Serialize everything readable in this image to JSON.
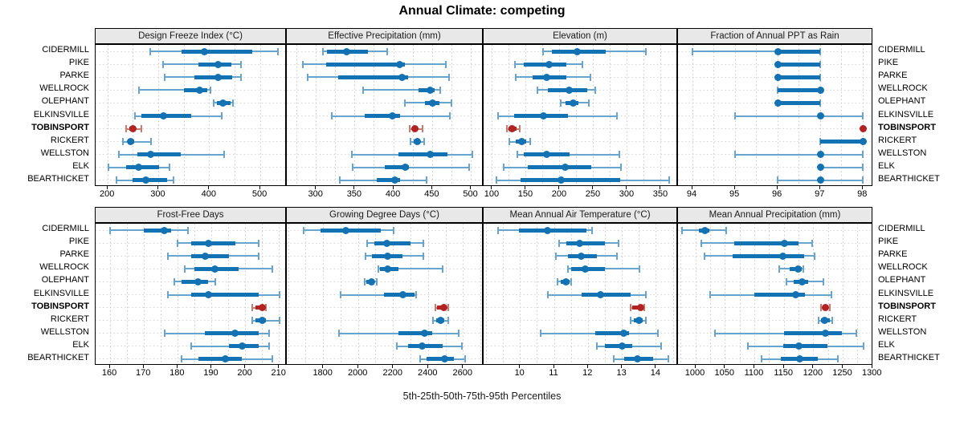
{
  "title": "Annual Climate: competing",
  "footer": "5th-25th-50th-75th-95th Percentiles",
  "sites": [
    "CIDERMILL",
    "PIKE",
    "PARKE",
    "WELLROCK",
    "OLEPHANT",
    "ELKINSVILLE",
    "TOBINSPORT",
    "RICKERT",
    "WELLSTON",
    "ELK",
    "BEARTHICKET"
  ],
  "highlight_site": "TOBINSPORT",
  "colors": {
    "blue": "#1272b4",
    "blue_light": "#67a4ce",
    "red": "#b22222",
    "red_light": "#c97c6d",
    "header_bg": "#e8e8e8",
    "grid": "#c9c9c9",
    "row_grid": "#d6d6d6",
    "border": "#000000"
  },
  "chart_data": {
    "type": "dot-whisker-trellis",
    "percentiles": [
      5,
      25,
      50,
      75,
      95
    ],
    "panels": [
      {
        "title": "Design Freeze Index (°C)",
        "xlim": [
          176,
          552
        ],
        "ticks": [
          200,
          300,
          400,
          500
        ],
        "minor_step": 50,
        "values": {
          "CIDERMILL": [
            283,
            345,
            390,
            484,
            535
          ],
          "PIKE": [
            308,
            378,
            417,
            443,
            462
          ],
          "PARKE": [
            312,
            370,
            417,
            444,
            462
          ],
          "WELLROCK": [
            262,
            349,
            380,
            396,
            402
          ],
          "OLEPHANT": [
            409,
            414,
            426,
            441,
            446
          ],
          "ELKINSVILLE": [
            254,
            266,
            310,
            364,
            424
          ],
          "TOBINSPORT": [
            236,
            243,
            249,
            255,
            266
          ],
          "RICKERT": [
            229,
            239,
            245,
            252,
            285
          ],
          "WELLSTON": [
            222,
            258,
            284,
            344,
            428
          ],
          "ELK": [
            202,
            236,
            261,
            301,
            322
          ],
          "BEARTHICKET": [
            217,
            249,
            274,
            317,
            330
          ]
        }
      },
      {
        "title": "Effective Precipitation (mm)",
        "xlim": [
          262,
          516
        ],
        "ticks": [
          300,
          350,
          400,
          450,
          500
        ],
        "minor_step": 25,
        "values": {
          "CIDERMILL": [
            309,
            314,
            339,
            367,
            392
          ],
          "PIKE": [
            283,
            313,
            408,
            414,
            467
          ],
          "PARKE": [
            289,
            328,
            411,
            419,
            471
          ],
          "WELLROCK": [
            360,
            432,
            447,
            453,
            460
          ],
          "OLEPHANT": [
            414,
            440,
            450,
            459,
            475
          ],
          "ELKINSVILLE": [
            320,
            363,
            398,
            408,
            472
          ],
          "TOBINSPORT": [
            421,
            424,
            427,
            431,
            437
          ],
          "RICKERT": [
            422,
            426,
            430,
            433,
            439
          ],
          "WELLSTON": [
            346,
            406,
            447,
            469,
            502
          ],
          "ELK": [
            347,
            388,
            415,
            420,
            497
          ],
          "BEARTHICKET": [
            330,
            378,
            401,
            408,
            442
          ]
        }
      },
      {
        "title": "Elevation (m)",
        "xlim": [
          87,
          375
        ],
        "ticks": [
          100,
          150,
          200,
          250,
          300,
          350
        ],
        "minor_step": 25,
        "values": {
          "CIDERMILL": [
            175,
            188,
            226,
            268,
            327
          ],
          "PIKE": [
            134,
            147,
            184,
            209,
            233
          ],
          "PARKE": [
            135,
            160,
            181,
            210,
            245
          ],
          "WELLROCK": [
            167,
            182,
            214,
            241,
            253
          ],
          "OLEPHANT": [
            201,
            208,
            220,
            227,
            243
          ],
          "ELKINSVILLE": [
            109,
            132,
            176,
            212,
            285
          ],
          "TOBINSPORT": [
            121,
            124,
            129,
            136,
            141
          ],
          "RICKERT": [
            125,
            135,
            144,
            150,
            156
          ],
          "WELLSTON": [
            137,
            146,
            180,
            214,
            288
          ],
          "ELK": [
            117,
            152,
            208,
            247,
            290
          ],
          "BEARTHICKET": [
            106,
            142,
            202,
            289,
            362
          ]
        }
      },
      {
        "title": "Fraction of Annual PPT as Rain",
        "xlim": [
          93.66,
          98.24
        ],
        "ticks": [
          94,
          95,
          96,
          97,
          98
        ],
        "minor_step": 0.5,
        "values": {
          "CIDERMILL": [
            94,
            96,
            96,
            97,
            97
          ],
          "PIKE": [
            96,
            96,
            96,
            97,
            97
          ],
          "PARKE": [
            96,
            96,
            96,
            97,
            97
          ],
          "WELLROCK": [
            96,
            96,
            97,
            97,
            97
          ],
          "OLEPHANT": [
            96,
            96,
            96,
            97,
            97
          ],
          "ELKINSVILLE": [
            95,
            97,
            97,
            97,
            98
          ],
          "TOBINSPORT": [
            98,
            98,
            98,
            98,
            98
          ],
          "RICKERT": [
            97,
            97,
            98,
            98,
            98
          ],
          "WELLSTON": [
            95,
            97,
            97,
            97,
            98
          ],
          "ELK": [
            97,
            97,
            97,
            97,
            98
          ],
          "BEARTHICKET": [
            96,
            97,
            97,
            97,
            98
          ]
        }
      },
      {
        "title": "Frost-Free Days",
        "xlim": [
          155.7,
          212.2
        ],
        "ticks": [
          160,
          170,
          180,
          190,
          200,
          210
        ],
        "minor_step": 5,
        "values": {
          "CIDERMILL": [
            160,
            170,
            176,
            178,
            183
          ],
          "PIKE": [
            180,
            184,
            189,
            197,
            204
          ],
          "PARKE": [
            177,
            184,
            188,
            195,
            204
          ],
          "WELLROCK": [
            182,
            185,
            191,
            198,
            208
          ],
          "OLEPHANT": [
            179,
            181,
            186,
            189,
            191
          ],
          "ELKINSVILLE": [
            177,
            184,
            189,
            204,
            210
          ],
          "TOBINSPORT": [
            202,
            203,
            205,
            205,
            206
          ],
          "RICKERT": [
            202,
            203,
            205,
            206,
            210
          ],
          "WELLSTON": [
            176,
            188,
            197,
            204,
            207
          ],
          "ELK": [
            184,
            195,
            199,
            204,
            207
          ],
          "BEARTHICKET": [
            181,
            186,
            194,
            199,
            208
          ]
        }
      },
      {
        "title": "Growing Degree Days (°C)",
        "xlim": [
          1590,
          2716
        ],
        "ticks": [
          1800,
          2000,
          2200,
          2400,
          2600
        ],
        "minor_step": 100,
        "values": {
          "CIDERMILL": [
            1685,
            1785,
            1930,
            2130,
            2200
          ],
          "PIKE": [
            2050,
            2090,
            2160,
            2300,
            2370
          ],
          "PARKE": [
            2040,
            2076,
            2168,
            2252,
            2372
          ],
          "WELLROCK": [
            2115,
            2125,
            2165,
            2230,
            2480
          ],
          "OLEPHANT": [
            2038,
            2045,
            2073,
            2091,
            2103
          ],
          "ELKINSVILLE": [
            1900,
            2145,
            2255,
            2320,
            2330
          ],
          "TOBINSPORT": [
            2440,
            2450,
            2490,
            2505,
            2515
          ],
          "RICKERT": [
            2425,
            2445,
            2470,
            2490,
            2515
          ],
          "WELLSTON": [
            1890,
            2230,
            2380,
            2420,
            2575
          ],
          "ELK": [
            2220,
            2285,
            2365,
            2480,
            2590
          ],
          "BEARTHICKET": [
            2355,
            2390,
            2495,
            2545,
            2610
          ]
        }
      },
      {
        "title": "Mean Annual Air Temperature (°C)",
        "xlim": [
          8.92,
          14.64
        ],
        "ticks": [
          10,
          11,
          12,
          13,
          14
        ],
        "minor_step": 0.5,
        "values": {
          "CIDERMILL": [
            9.35,
            9.95,
            10.8,
            11.95,
            12.1
          ],
          "PIKE": [
            11.15,
            11.35,
            11.75,
            12.5,
            12.9
          ],
          "PARKE": [
            11.05,
            11.4,
            11.8,
            12.25,
            12.85
          ],
          "WELLROCK": [
            11.4,
            11.5,
            11.9,
            12.5,
            13.5
          ],
          "OLEPHANT": [
            11.1,
            11.2,
            11.35,
            11.45,
            11.5
          ],
          "ELKINSVILLE": [
            10.8,
            11.8,
            12.35,
            13.25,
            13.7
          ],
          "TOBINSPORT": [
            13.25,
            13.3,
            13.55,
            13.6,
            13.65
          ],
          "RICKERT": [
            13.25,
            13.35,
            13.5,
            13.6,
            13.7
          ],
          "WELLSTON": [
            10.6,
            12.2,
            13.05,
            13.2,
            14.05
          ],
          "ELK": [
            12.25,
            12.5,
            13.0,
            13.3,
            14.15
          ],
          "BEARTHICKET": [
            12.75,
            13.05,
            13.45,
            13.9,
            14.35
          ]
        }
      },
      {
        "title": "Mean Annual Precipitation (mm)",
        "xlim": [
          970,
          1301
        ],
        "ticks": [
          1000,
          1050,
          1100,
          1150,
          1200,
          1250,
          1300
        ],
        "minor_step": 25,
        "values": {
          "CIDERMILL": [
            977,
            1005,
            1015,
            1023,
            1052
          ],
          "PIKE": [
            1010,
            1066,
            1150,
            1175,
            1198
          ],
          "PARKE": [
            1015,
            1063,
            1148,
            1184,
            1202
          ],
          "WELLROCK": [
            1142,
            1159,
            1174,
            1180,
            1183
          ],
          "OLEPHANT": [
            1154,
            1166,
            1180,
            1191,
            1216
          ],
          "ELKINSVILLE": [
            1025,
            1100,
            1170,
            1185,
            1230
          ],
          "TOBINSPORT": [
            1212,
            1215,
            1220,
            1225,
            1228
          ],
          "RICKERT": [
            1208,
            1213,
            1219,
            1227,
            1232
          ],
          "WELLSTON": [
            1033,
            1150,
            1220,
            1248,
            1273
          ],
          "ELK": [
            1088,
            1148,
            1175,
            1223,
            1284
          ],
          "BEARTHICKET": [
            1111,
            1145,
            1176,
            1207,
            1241
          ]
        }
      }
    ]
  }
}
